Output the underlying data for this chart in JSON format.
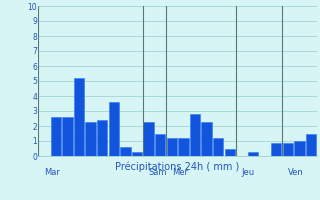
{
  "values": [
    0.0,
    2.6,
    2.6,
    5.2,
    2.3,
    2.4,
    3.6,
    0.6,
    0.3,
    2.3,
    1.5,
    1.2,
    1.2,
    2.8,
    2.3,
    1.2,
    0.5,
    0.0,
    0.3,
    0.0,
    0.9,
    0.9,
    1.0,
    1.5
  ],
  "n_bars": 24,
  "bar_color": "#1155dd",
  "bar_edge_color": "#3377ff",
  "background_color": "#d8f5f5",
  "grid_color": "#99cccc",
  "divider_color": "#557777",
  "ylim": [
    0,
    10
  ],
  "yticks": [
    0,
    1,
    2,
    3,
    4,
    5,
    6,
    7,
    8,
    9,
    10
  ],
  "xlabel": "Précipitations 24h ( mm )",
  "xlabel_color": "#2255bb",
  "tick_color": "#2255bb",
  "day_labels": [
    "Mar",
    "Sam",
    "Mer",
    "Jeu",
    "Ven"
  ],
  "day_line_positions": [
    0,
    9,
    11,
    17,
    21
  ],
  "fig_bg": "#d8f5f5",
  "fig_width": 3.2,
  "fig_height": 2.0,
  "fig_dpi": 100
}
